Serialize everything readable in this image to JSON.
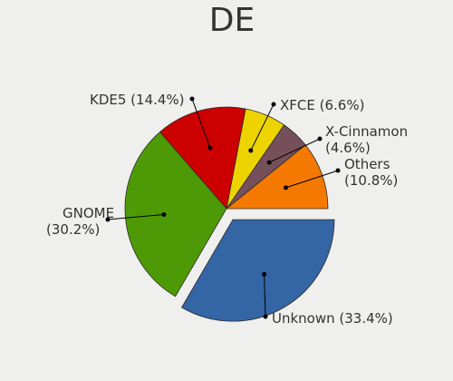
{
  "chart_data": {
    "type": "pie",
    "title": "DE",
    "slices": [
      {
        "name": "Others",
        "value": 10.8,
        "label_lines": [
          "Others",
          "(10.8%)"
        ],
        "color": "#f57900"
      },
      {
        "name": "X-Cinnamon",
        "value": 4.6,
        "label_lines": [
          "X-Cinnamon",
          "(4.6%)"
        ],
        "color": "#75505b"
      },
      {
        "name": "XFCE",
        "value": 6.6,
        "label_lines": [
          "XFCE (6.6%)"
        ],
        "color": "#edd400"
      },
      {
        "name": "KDE5",
        "value": 14.4,
        "label_lines": [
          "KDE5 (14.4%)"
        ],
        "color": "#cc0000"
      },
      {
        "name": "GNOME",
        "value": 30.2,
        "label_lines": [
          "GNOME",
          "(30.2%)"
        ],
        "color": "#4e9a06"
      },
      {
        "name": "Unknown",
        "value": 33.4,
        "label_lines": [
          "Unknown (33.4%)"
        ],
        "color": "#3465a4",
        "exploded": true
      }
    ]
  }
}
